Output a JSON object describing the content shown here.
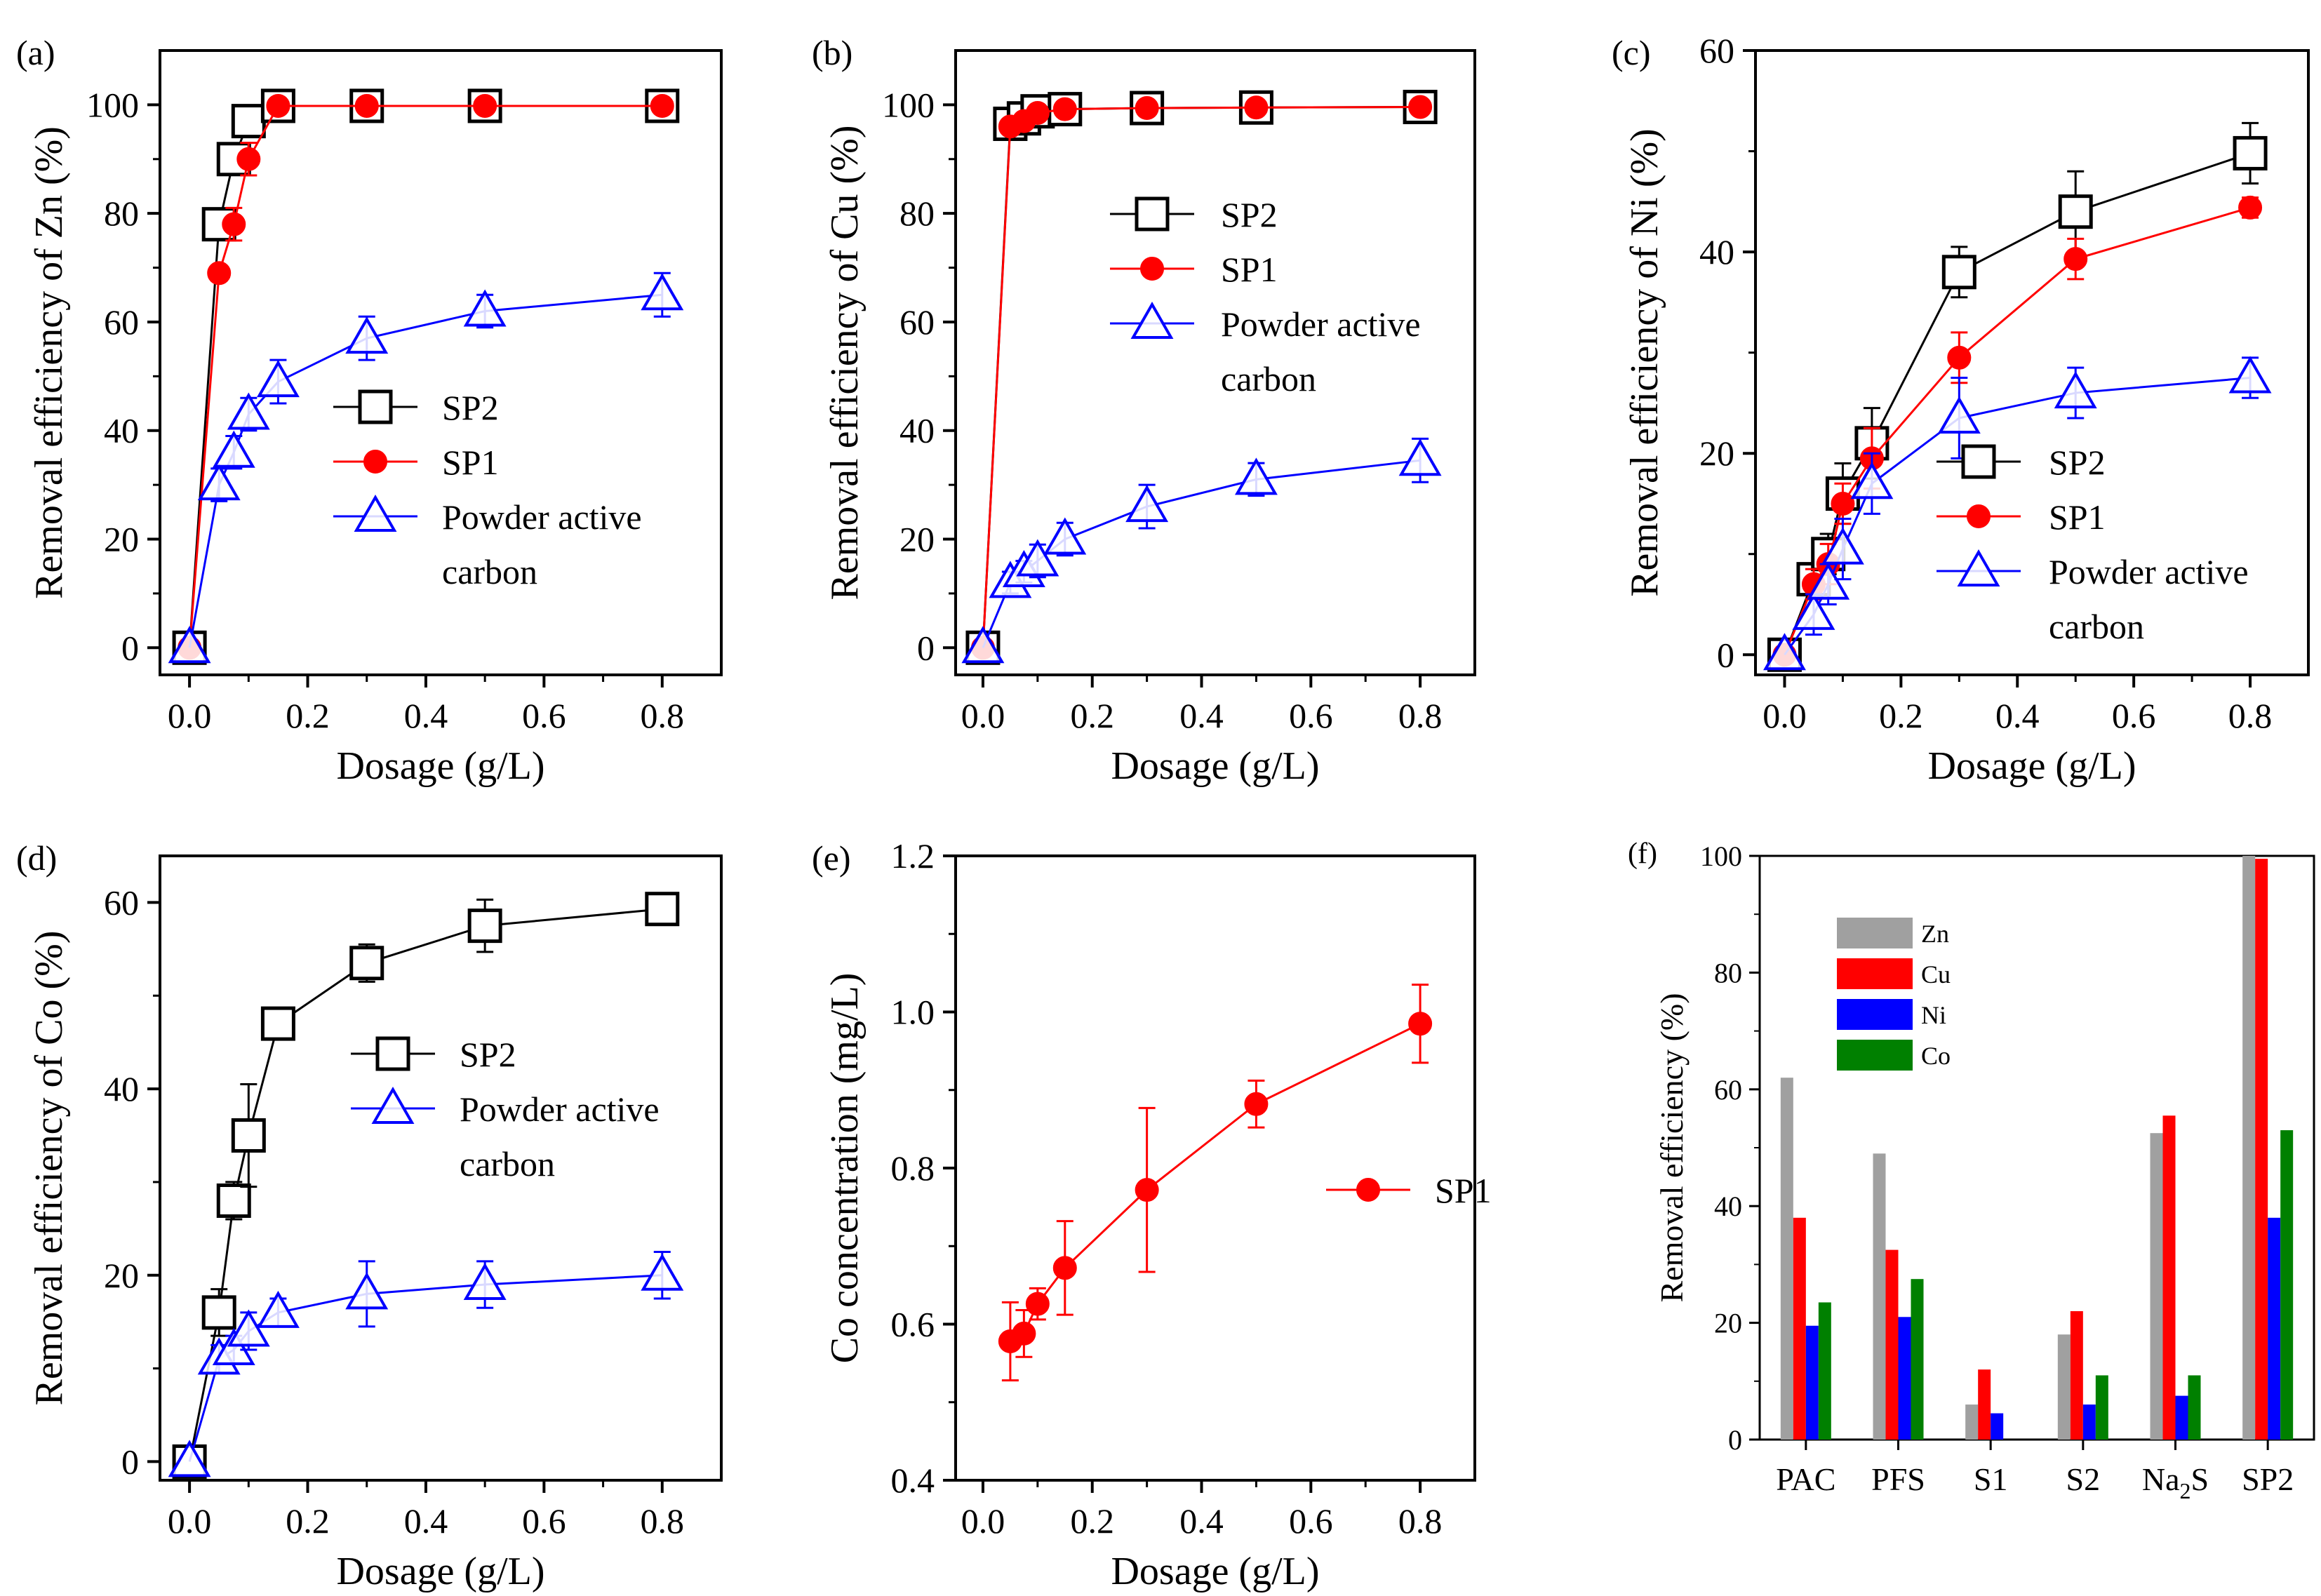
{
  "chart_data": [
    {
      "id": "a",
      "panel_label": "(a)",
      "type": "line",
      "xlabel": "Dosage (g/L)",
      "ylabel": "Removal efficiency of Zn (%)",
      "xlim": [
        -0.05,
        0.9
      ],
      "ylim": [
        -5,
        110
      ],
      "xticks": [
        0.0,
        0.2,
        0.4,
        0.6,
        0.8
      ],
      "xtick_labels": [
        "0.0",
        "0.2",
        "0.4",
        "0.6",
        "0.8"
      ],
      "yticks": [
        0,
        20,
        40,
        60,
        80,
        100
      ],
      "ytick_labels": [
        "0",
        "20",
        "40",
        "60",
        "80",
        "100"
      ],
      "legend_position": "center-right",
      "series": [
        {
          "name": "SP2",
          "marker": "square",
          "color": "#000000",
          "x": [
            0,
            0.05,
            0.075,
            0.1,
            0.15,
            0.3,
            0.5,
            0.8
          ],
          "y": [
            0,
            78,
            90,
            97,
            99.8,
            99.8,
            99.8,
            99.8
          ],
          "err": [
            0,
            0,
            0,
            0,
            0,
            0,
            0,
            0
          ]
        },
        {
          "name": "SP1",
          "marker": "circle",
          "color": "#ff0000",
          "x": [
            0,
            0.05,
            0.075,
            0.1,
            0.15,
            0.3,
            0.5,
            0.8
          ],
          "y": [
            0,
            69,
            78,
            90,
            99.8,
            99.8,
            99.8,
            99.8
          ],
          "err": [
            0,
            0,
            3,
            3,
            0,
            0,
            0,
            0
          ]
        },
        {
          "name": "Powder active carbon",
          "legend_lines": [
            "Powder active",
            "carbon"
          ],
          "marker": "triangle",
          "color": "#0000ff",
          "x": [
            0,
            0.05,
            0.075,
            0.1,
            0.15,
            0.3,
            0.5,
            0.8
          ],
          "y": [
            0,
            30,
            36,
            43,
            49,
            57,
            62,
            65
          ],
          "err": [
            0,
            3,
            3,
            3,
            4,
            4,
            3,
            4
          ]
        }
      ]
    },
    {
      "id": "b",
      "panel_label": "(b)",
      "type": "line",
      "xlabel": "Dosage (g/L)",
      "ylabel": "Removal efficiency of Cu (%)",
      "xlim": [
        -0.05,
        0.9
      ],
      "ylim": [
        -5,
        110
      ],
      "xticks": [
        0.0,
        0.2,
        0.4,
        0.6,
        0.8
      ],
      "xtick_labels": [
        "0.0",
        "0.2",
        "0.4",
        "0.6",
        "0.8"
      ],
      "yticks": [
        0,
        20,
        40,
        60,
        80,
        100
      ],
      "ytick_labels": [
        "0",
        "20",
        "40",
        "60",
        "80",
        "100"
      ],
      "legend_position": "center-right",
      "series": [
        {
          "name": "SP2",
          "marker": "square",
          "color": "#000000",
          "x": [
            0,
            0.05,
            0.075,
            0.1,
            0.15,
            0.3,
            0.5,
            0.8
          ],
          "y": [
            0,
            96.5,
            97.5,
            98.8,
            99.2,
            99.4,
            99.5,
            99.6
          ],
          "err": [
            0,
            0,
            0,
            0,
            0,
            0,
            0,
            0
          ]
        },
        {
          "name": "SP1",
          "marker": "circle",
          "color": "#ff0000",
          "x": [
            0,
            0.05,
            0.075,
            0.1,
            0.15,
            0.3,
            0.5,
            0.8
          ],
          "y": [
            0,
            96,
            97,
            98.5,
            99.2,
            99.4,
            99.5,
            99.6
          ],
          "err": [
            0,
            0,
            0,
            0,
            0,
            0,
            0,
            0
          ]
        },
        {
          "name": "Powder active carbon",
          "legend_lines": [
            "Powder active",
            "carbon"
          ],
          "marker": "triangle",
          "color": "#0000ff",
          "x": [
            0,
            0.05,
            0.075,
            0.1,
            0.15,
            0.3,
            0.5,
            0.8
          ],
          "y": [
            0,
            12,
            14,
            16,
            20,
            26,
            31,
            34.5
          ],
          "err": [
            0,
            2,
            2,
            3,
            3,
            4,
            3,
            4
          ]
        }
      ]
    },
    {
      "id": "c",
      "panel_label": "(c)",
      "type": "line",
      "xlabel": "Dosage (g/L)",
      "ylabel": "Removal efficiency of Ni (%)",
      "xlim": [
        -0.05,
        0.9
      ],
      "ylim": [
        -2,
        60
      ],
      "xticks": [
        0.0,
        0.2,
        0.4,
        0.6,
        0.8
      ],
      "xtick_labels": [
        "0.0",
        "0.2",
        "0.4",
        "0.6",
        "0.8"
      ],
      "yticks": [
        0,
        20,
        40,
        60
      ],
      "ytick_labels": [
        "0",
        "20",
        "40",
        "60"
      ],
      "legend_position": "bottom-right",
      "series": [
        {
          "name": "SP2",
          "marker": "square",
          "color": "#000000",
          "x": [
            0,
            0.05,
            0.075,
            0.1,
            0.15,
            0.3,
            0.5,
            0.8
          ],
          "y": [
            0,
            7.5,
            10,
            16,
            21,
            38,
            44,
            49.8
          ],
          "err": [
            0,
            1.5,
            2,
            3,
            3.5,
            2.5,
            4,
            3
          ]
        },
        {
          "name": "SP1",
          "marker": "circle",
          "color": "#ff0000",
          "x": [
            0,
            0.05,
            0.075,
            0.1,
            0.15,
            0.3,
            0.5,
            0.8
          ],
          "y": [
            0,
            7,
            9,
            15,
            19.5,
            29.5,
            39.3,
            44.4
          ],
          "err": [
            0,
            1.5,
            2,
            2,
            3,
            2.5,
            2,
            1
          ]
        },
        {
          "name": "Powder active carbon",
          "legend_lines": [
            "Powder active",
            "carbon"
          ],
          "marker": "triangle",
          "color": "#0000ff",
          "x": [
            0,
            0.05,
            0.075,
            0.1,
            0.15,
            0.3,
            0.5,
            0.8
          ],
          "y": [
            0,
            4,
            7,
            10.5,
            17,
            23.5,
            26,
            27.5
          ],
          "err": [
            0,
            2,
            2,
            3,
            3,
            4,
            2.5,
            2
          ]
        }
      ]
    },
    {
      "id": "d",
      "panel_label": "(d)",
      "type": "line",
      "xlabel": "Dosage (g/L)",
      "ylabel": "Removal efficiency of Co (%)",
      "xlim": [
        -0.05,
        0.9
      ],
      "ylim": [
        -2,
        65
      ],
      "xticks": [
        0.0,
        0.2,
        0.4,
        0.6,
        0.8
      ],
      "xtick_labels": [
        "0.0",
        "0.2",
        "0.4",
        "0.6",
        "0.8"
      ],
      "yticks": [
        0,
        20,
        40,
        60
      ],
      "ytick_labels": [
        "0",
        "20",
        "40",
        "60"
      ],
      "legend_position": "center-right",
      "series": [
        {
          "name": "SP2",
          "marker": "square",
          "color": "#000000",
          "x": [
            0,
            0.05,
            0.075,
            0.1,
            0.15,
            0.3,
            0.5,
            0.8
          ],
          "y": [
            0,
            16,
            28,
            35,
            47,
            53.5,
            57.5,
            59.3
          ],
          "err": [
            0,
            2.5,
            2,
            5.5,
            1.5,
            2,
            2.8,
            1.5
          ]
        },
        {
          "name": "Powder active carbon",
          "legend_lines": [
            "Powder active",
            "carbon"
          ],
          "marker": "triangle",
          "color": "#0000ff",
          "x": [
            0,
            0.05,
            0.075,
            0.1,
            0.15,
            0.3,
            0.5,
            0.8
          ],
          "y": [
            0,
            11,
            12,
            14,
            16,
            18,
            19,
            20
          ],
          "err": [
            0,
            1.5,
            1.5,
            2,
            1.5,
            3.5,
            2.5,
            2.5
          ]
        }
      ]
    },
    {
      "id": "e",
      "panel_label": "(e)",
      "type": "line",
      "xlabel": "Dosage (g/L)",
      "ylabel": "Co concentration (mg/L)",
      "xlim": [
        -0.05,
        0.9
      ],
      "ylim": [
        0.4,
        1.2
      ],
      "xticks": [
        0.0,
        0.2,
        0.4,
        0.6,
        0.8
      ],
      "xtick_labels": [
        "0.0",
        "0.2",
        "0.4",
        "0.6",
        "0.8"
      ],
      "yticks": [
        0.4,
        0.6,
        0.8,
        1.0,
        1.2
      ],
      "ytick_labels": [
        "0.4",
        "0.6",
        "0.8",
        "1.0",
        "1.2"
      ],
      "legend_position": "center-right",
      "series": [
        {
          "name": "SP1",
          "marker": "circle",
          "color": "#ff0000",
          "x": [
            0.05,
            0.075,
            0.1,
            0.15,
            0.3,
            0.5,
            0.8
          ],
          "y": [
            0.578,
            0.588,
            0.626,
            0.672,
            0.772,
            0.882,
            0.985
          ],
          "err": [
            0.05,
            0.03,
            0.02,
            0.06,
            0.105,
            0.03,
            0.05
          ]
        }
      ]
    },
    {
      "id": "f",
      "panel_label": "(f)",
      "type": "bar",
      "ylabel": "Removal efficiency (%)",
      "ylim": [
        0,
        100
      ],
      "yticks": [
        0,
        20,
        40,
        60,
        80,
        100
      ],
      "ytick_labels": [
        "0",
        "20",
        "40",
        "60",
        "80",
        "100"
      ],
      "categories": [
        "PAC",
        "PFS",
        "S1",
        "S2",
        "Na2S",
        "SP2"
      ],
      "category_labels": [
        {
          "main": "PAC",
          "sub": ""
        },
        {
          "main": "PFS",
          "sub": ""
        },
        {
          "main": "S1",
          "sub": ""
        },
        {
          "main": "S2",
          "sub": ""
        },
        {
          "main": "Na",
          "sub": "2",
          "tail": "S"
        },
        {
          "main": "SP2",
          "sub": ""
        }
      ],
      "legend_position": "top-left",
      "series": [
        {
          "name": "Zn",
          "color": "#a0a0a0",
          "values": [
            62,
            49,
            6,
            18,
            52.5,
            100
          ]
        },
        {
          "name": "Cu",
          "color": "#ff0000",
          "values": [
            38,
            32.5,
            12,
            22,
            55.5,
            99.5
          ]
        },
        {
          "name": "Ni",
          "color": "#0000ff",
          "values": [
            19.5,
            21,
            4.5,
            6,
            7.5,
            38
          ]
        },
        {
          "name": "Co",
          "color": "#008000",
          "values": [
            23.5,
            27.5,
            0,
            11,
            11,
            53
          ]
        }
      ]
    }
  ]
}
